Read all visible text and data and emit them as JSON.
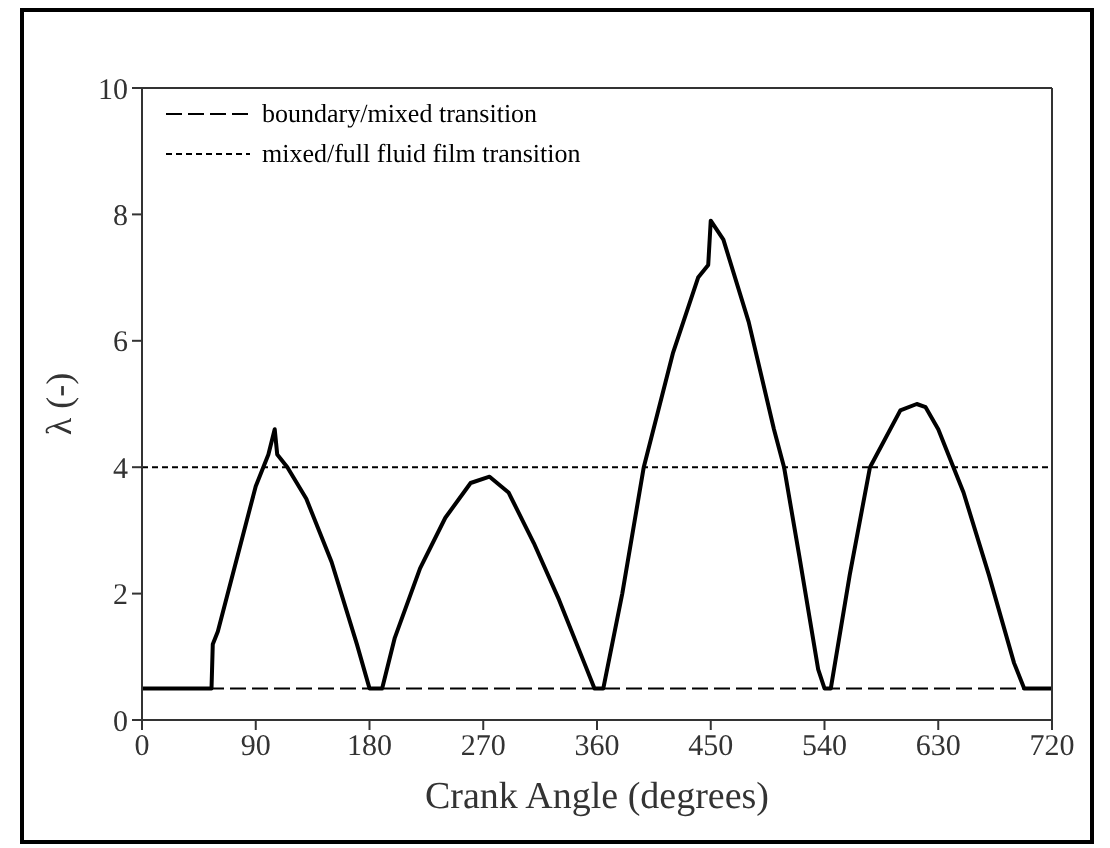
{
  "chart_data": {
    "type": "line",
    "xlabel": "Crank Angle (degrees)",
    "ylabel": "λ (-)",
    "x": [
      0,
      55,
      56,
      60,
      90,
      100,
      105,
      107,
      115,
      130,
      150,
      170,
      180,
      190,
      200,
      220,
      240,
      260,
      275,
      290,
      310,
      330,
      350,
      358,
      365,
      380,
      397,
      420,
      440,
      448,
      450,
      460,
      480,
      500,
      508,
      520,
      535,
      540,
      545,
      560,
      576,
      600,
      613,
      620,
      630,
      642,
      650,
      670,
      690,
      698,
      720
    ],
    "series": [
      {
        "color": "#000000",
        "values": [
          0.5,
          0.5,
          1.2,
          1.4,
          3.7,
          4.2,
          4.6,
          4.2,
          4.0,
          3.5,
          2.5,
          1.2,
          0.5,
          0.5,
          1.3,
          2.4,
          3.2,
          3.75,
          3.85,
          3.6,
          2.8,
          1.9,
          0.9,
          0.5,
          0.5,
          2.0,
          4.0,
          5.8,
          7.0,
          7.2,
          7.9,
          7.6,
          6.3,
          4.6,
          4.0,
          2.6,
          0.8,
          0.5,
          0.5,
          2.3,
          4.0,
          4.9,
          5.0,
          4.95,
          4.6,
          4.0,
          3.6,
          2.3,
          0.9,
          0.5,
          0.5
        ]
      }
    ],
    "xlim": [
      0,
      720
    ],
    "xticks": [
      0,
      90,
      180,
      270,
      360,
      450,
      540,
      630,
      720
    ],
    "ylim": [
      0,
      10
    ],
    "yticks": [
      0,
      2,
      4,
      6,
      8,
      10
    ],
    "ref_lines": [
      {
        "axis": "y",
        "value": 0.5,
        "label": "boundary/mixed transition",
        "line_style": "dashed",
        "color": "#000000"
      },
      {
        "axis": "y",
        "value": 4,
        "label": "mixed/full fluid film transition",
        "line_style": "dotted",
        "color": "#000000"
      }
    ],
    "legend": "top left",
    "marker": "none",
    "line_style": "solid"
  }
}
